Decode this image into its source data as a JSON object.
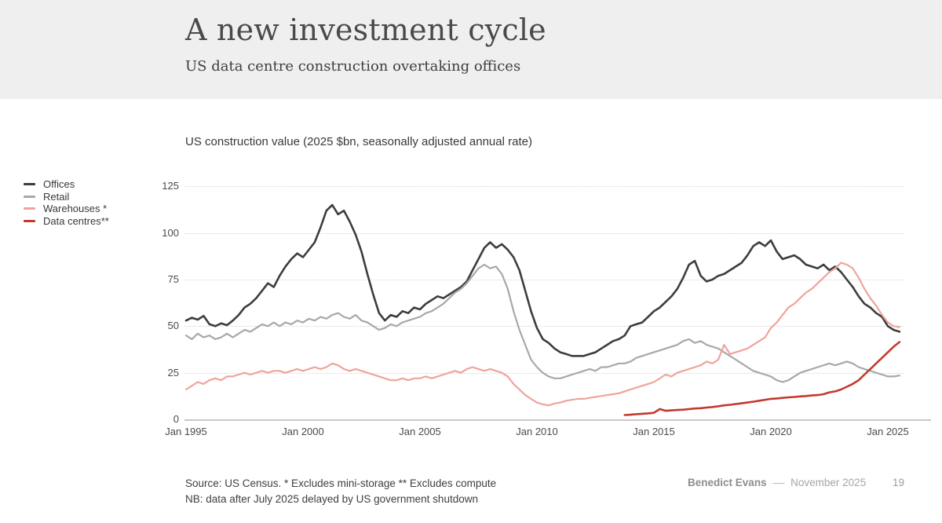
{
  "header": {
    "title": "A new investment cycle",
    "subtitle": "US data centre construction overtaking offices"
  },
  "footer": {
    "source_line1": "Source: US Census. * Excludes mini-storage ** Excludes compute",
    "source_line2": "NB: data after July 2025 delayed by US government shutdown",
    "author": "Benedict Evans",
    "separator": "––",
    "date": "November 2025",
    "page_number": "19"
  },
  "chart_data": {
    "type": "line",
    "title": "US construction value (2025 $bn, seasonally adjusted annual rate)",
    "xlabel": "",
    "ylabel": "",
    "x_axis": {
      "tick_labels": [
        "Jan 1995",
        "Jan 2000",
        "Jan 2005",
        "Jan 2010",
        "Jan 2015",
        "Jan 2020",
        "Jan 2025"
      ],
      "tick_years": [
        1995,
        2000,
        2005,
        2010,
        2015,
        2020,
        2025
      ],
      "range": [
        1995,
        2025.5
      ]
    },
    "y_axis": {
      "tick_values": [
        0,
        25,
        50,
        75,
        100,
        125
      ],
      "range": [
        0,
        125
      ],
      "gridlines": "dotted"
    },
    "legend_position": "left",
    "colors": {
      "offices": "#3d3d3d",
      "retail": "#a8a8a8",
      "warehouses": "#eea49c",
      "data_centres": "#c23a2c"
    },
    "series": [
      {
        "name": "Offices",
        "color": "#3d3d3d",
        "stroke_width": 2.6,
        "x_start": 1995.0,
        "x_step": 0.25,
        "values": [
          53,
          54.5,
          53.5,
          55.5,
          51,
          50,
          51.5,
          50.5,
          53,
          56,
          60,
          62,
          65,
          69,
          73,
          71,
          77,
          82,
          86,
          89,
          87,
          91,
          95,
          103,
          112,
          115,
          110,
          112,
          106,
          99,
          90,
          78,
          67,
          57,
          53,
          56,
          55,
          58,
          57,
          60,
          59,
          62,
          64,
          66,
          65,
          67,
          69,
          71,
          74,
          80,
          86,
          92,
          95,
          92,
          94,
          91,
          87,
          80,
          69,
          58,
          49,
          43,
          41,
          38,
          36,
          35,
          34,
          34,
          34,
          35,
          36,
          38,
          40,
          42,
          43,
          45,
          50,
          51,
          52,
          55,
          58,
          60,
          63,
          66,
          70,
          76,
          83,
          85,
          77,
          74,
          75,
          77,
          78,
          80,
          82,
          84,
          88,
          93,
          95,
          93,
          96,
          90,
          86,
          87,
          88,
          86,
          83,
          82,
          81,
          83,
          80,
          82,
          79,
          75,
          71,
          66,
          62,
          60,
          57,
          55,
          50,
          48,
          47
        ]
      },
      {
        "name": "Retail",
        "color": "#a8a8a8",
        "stroke_width": 2.2,
        "x_start": 1995.0,
        "x_step": 0.25,
        "values": [
          45,
          43,
          46,
          44,
          45,
          43,
          44,
          46,
          44,
          46,
          48,
          47,
          49,
          51,
          50,
          52,
          50,
          52,
          51,
          53,
          52,
          54,
          53,
          55,
          54,
          56,
          57,
          55,
          54,
          56,
          53,
          52,
          50,
          48,
          49,
          51,
          50,
          52,
          53,
          54,
          55,
          57,
          58,
          60,
          62,
          65,
          68,
          70,
          73,
          77,
          81,
          83,
          81,
          82,
          78,
          70,
          58,
          48,
          40,
          32,
          28,
          25,
          23,
          22,
          22,
          23,
          24,
          25,
          26,
          27,
          26,
          28,
          28,
          29,
          30,
          30,
          31,
          33,
          34,
          35,
          36,
          37,
          38,
          39,
          40,
          42,
          43,
          41,
          42,
          40,
          39,
          38,
          36,
          34,
          32,
          30,
          28,
          26,
          25,
          24,
          23,
          21,
          20,
          21,
          23,
          25,
          26,
          27,
          28,
          29,
          30,
          29,
          30,
          31,
          30,
          28,
          27,
          26,
          25,
          24,
          23,
          23,
          23.5
        ]
      },
      {
        "name": "Warehouses *",
        "color": "#eea49c",
        "stroke_width": 2.2,
        "x_start": 1995.0,
        "x_step": 0.25,
        "values": [
          16,
          18,
          20,
          19,
          21,
          22,
          21,
          23,
          23,
          24,
          25,
          24,
          25,
          26,
          25,
          26,
          26,
          25,
          26,
          27,
          26,
          27,
          28,
          27,
          28,
          30,
          29,
          27,
          26,
          27,
          26,
          25,
          24,
          23,
          22,
          21,
          21,
          22,
          21,
          22,
          22,
          23,
          22,
          23,
          24,
          25,
          26,
          25,
          27,
          28,
          27,
          26,
          27,
          26,
          25,
          23,
          19,
          16,
          13,
          11,
          9,
          8,
          7.5,
          8.5,
          9,
          10,
          10.5,
          11,
          11,
          11.5,
          12,
          12.5,
          13,
          13.5,
          14,
          15,
          16,
          17,
          18,
          19,
          20,
          22,
          24,
          23,
          25,
          26,
          27,
          28,
          29,
          31,
          30,
          32,
          40,
          35,
          36,
          37,
          38,
          40,
          42,
          44,
          49,
          52,
          56,
          60,
          62,
          65,
          68,
          70,
          73,
          76,
          79,
          81,
          84,
          83,
          81,
          76,
          70,
          65,
          61,
          56,
          52,
          50,
          49.5
        ]
      },
      {
        "name": "Data centres**",
        "color": "#c23a2c",
        "stroke_width": 2.6,
        "x_start": 2013.75,
        "x_step": 0.25,
        "values": [
          2.3,
          2.5,
          2.8,
          3,
          3.2,
          3.5,
          5.5,
          4.6,
          4.8,
          5,
          5.2,
          5.5,
          5.8,
          6,
          6.3,
          6.6,
          7,
          7.5,
          7.8,
          8.2,
          8.6,
          9,
          9.5,
          10,
          10.5,
          11,
          11.2,
          11.5,
          11.8,
          12,
          12.3,
          12.5,
          12.8,
          13,
          13.5,
          14.5,
          15,
          16,
          17.5,
          19,
          21,
          24,
          27,
          30,
          33,
          36,
          39,
          41.5
        ]
      }
    ]
  }
}
